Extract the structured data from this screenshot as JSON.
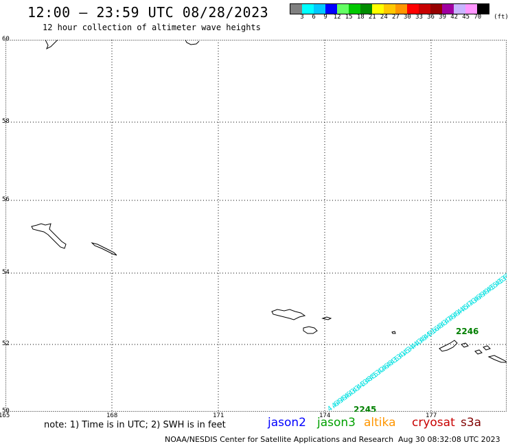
{
  "header": {
    "title": "12:00 – 23:59 UTC 08/28/2023",
    "subtitle": "12 hour collection of altimeter wave heights"
  },
  "colorbar": {
    "colors": [
      "#808080",
      "#00ffff",
      "#00c8ff",
      "#0000ff",
      "#64ff64",
      "#00c800",
      "#008c00",
      "#ffff00",
      "#ffc800",
      "#ff9600",
      "#ff0000",
      "#c80000",
      "#960000",
      "#a000a0",
      "#c8b4ff",
      "#ff96ff",
      "#000000"
    ],
    "labels": [
      "3",
      "6",
      "9",
      "12",
      "15",
      "18",
      "21",
      "24",
      "27",
      "30",
      "33",
      "36",
      "39",
      "42",
      "45",
      "70"
    ],
    "unit": "(ft)"
  },
  "map": {
    "lat_labels": [
      "60",
      "58",
      "56",
      "54",
      "52",
      "50"
    ],
    "lon_labels": [
      "165",
      "168",
      "171",
      "174",
      "177"
    ],
    "track_color": "#00e0e0",
    "track_points": [
      {
        "v": "4.6"
      },
      {
        "v": "4.9"
      },
      {
        "v": "4.9"
      },
      {
        "v": "4.6"
      },
      {
        "v": "4.3"
      },
      {
        "v": "4.3"
      },
      {
        "v": "4.4"
      },
      {
        "v": "4.3"
      },
      {
        "v": "3.8"
      },
      {
        "v": "4.5"
      },
      {
        "v": "4.3"
      },
      {
        "v": "5.2"
      },
      {
        "v": "4.6"
      },
      {
        "v": "4.8"
      },
      {
        "v": "4.3"
      },
      {
        "v": "4.3"
      },
      {
        "v": "5.1"
      },
      {
        "v": "4.5"
      },
      {
        "v": "4.4"
      },
      {
        "v": "3.4"
      },
      {
        "v": "4.3"
      },
      {
        "v": "4.8"
      },
      {
        "v": "4.4"
      },
      {
        "v": "4.9"
      },
      {
        "v": "5.6"
      },
      {
        "v": "5.8"
      },
      {
        "v": "4.3"
      },
      {
        "v": "4.7"
      },
      {
        "v": "4.9"
      },
      {
        "v": "4.9"
      },
      {
        "v": "4.4"
      },
      {
        "v": "4.5"
      },
      {
        "v": "4.7"
      },
      {
        "v": "4.3"
      },
      {
        "v": "4.6"
      },
      {
        "v": "4.9"
      },
      {
        "v": "4.9"
      },
      {
        "v": "4.6"
      },
      {
        "v": "4.5"
      },
      {
        "v": "5.0"
      },
      {
        "v": "4.3"
      },
      {
        "v": "5.0"
      },
      {
        "v": "6.3"
      },
      {
        "v": "6.6"
      }
    ],
    "pass_labels": [
      {
        "text": "2245",
        "color": "#008000"
      },
      {
        "text": "2246",
        "color": "#008000"
      }
    ]
  },
  "footer": {
    "note": "note: 1) Time is in UTC; 2) SWH is in feet",
    "satellites": [
      {
        "name": "jason2",
        "color": "#0000ff"
      },
      {
        "name": "jason3",
        "color": "#00a000"
      },
      {
        "name": "altika",
        "color": "#ff9600"
      },
      {
        "name": "cryosat",
        "color": "#c80000"
      },
      {
        "name": "s3a",
        "color": "#800000"
      }
    ],
    "credit": "NOAA/NESDIS Center for Satellite Applications and Research",
    "timestamp": "Aug 30 08:32:08 UTC 2023"
  }
}
